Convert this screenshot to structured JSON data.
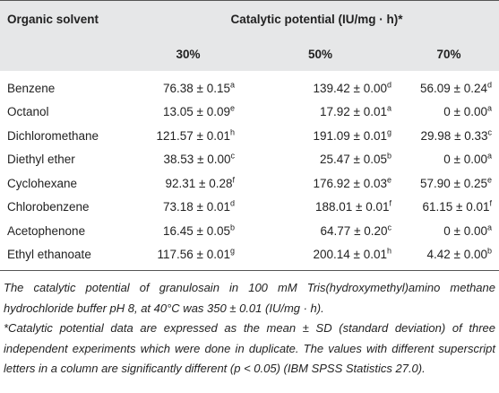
{
  "table": {
    "header": {
      "solvent": "Organic solvent",
      "group": "Catalytic potential (IU/mg · h)*",
      "columns": [
        "30%",
        "50%",
        "70%"
      ]
    },
    "rows": [
      {
        "name": "Benzene",
        "cells": [
          {
            "value": "76.38 ± 0.15",
            "sup": "a"
          },
          {
            "value": "139.42 ± 0.00",
            "sup": "d"
          },
          {
            "value": "56.09 ± 0.24",
            "sup": "d"
          }
        ]
      },
      {
        "name": "Octanol",
        "cells": [
          {
            "value": "13.05 ± 0.09",
            "sup": "e"
          },
          {
            "value": "17.92 ± 0.01",
            "sup": "a"
          },
          {
            "value": "0 ± 0.00",
            "sup": "a"
          }
        ]
      },
      {
        "name": "Dichloromethane",
        "cells": [
          {
            "value": "121.57 ± 0.01",
            "sup": "h"
          },
          {
            "value": "191.09 ± 0.01",
            "sup": "g"
          },
          {
            "value": "29.98 ± 0.33",
            "sup": "c"
          }
        ]
      },
      {
        "name": "Diethyl ether",
        "cells": [
          {
            "value": "38.53 ± 0.00",
            "sup": "c"
          },
          {
            "value": "25.47 ± 0.05",
            "sup": "b"
          },
          {
            "value": "0 ± 0.00",
            "sup": "a"
          }
        ]
      },
      {
        "name": "Cyclohexane",
        "cells": [
          {
            "value": "92.31 ± 0.28",
            "sup": "f"
          },
          {
            "value": "176.92 ± 0.03",
            "sup": "e"
          },
          {
            "value": "57.90 ± 0.25",
            "sup": "e"
          }
        ]
      },
      {
        "name": "Chlorobenzene",
        "cells": [
          {
            "value": "73.18 ± 0.01",
            "sup": "d"
          },
          {
            "value": "188.01 ± 0.01",
            "sup": "f"
          },
          {
            "value": "61.15 ± 0.01",
            "sup": "f"
          }
        ]
      },
      {
        "name": "Acetophenone",
        "cells": [
          {
            "value": "16.45 ± 0.05",
            "sup": "b"
          },
          {
            "value": "64.77 ± 0.20",
            "sup": "c"
          },
          {
            "value": "0 ± 0.00",
            "sup": "a"
          }
        ]
      },
      {
        "name": "Ethyl ethanoate",
        "cells": [
          {
            "value": "117.56 ± 0.01",
            "sup": "g"
          },
          {
            "value": "200.14 ± 0.01",
            "sup": "h"
          },
          {
            "value": "4.42 ± 0.00",
            "sup": "b"
          }
        ]
      }
    ],
    "notes": [
      "The catalytic potential of granulosain in 100 mM Tris(hydroxymethyl)amino methane hydrochloride buffer pH 8, at 40°C was 350 ± 0.01 (IU/mg · h).",
      "*Catalytic potential data are expressed as the mean ± SD (standard deviation) of three independent experiments which were done in duplicate. The values with different superscript letters in a column are significantly different (p < 0.05) (IBM SPSS Statistics 27.0)."
    ]
  }
}
